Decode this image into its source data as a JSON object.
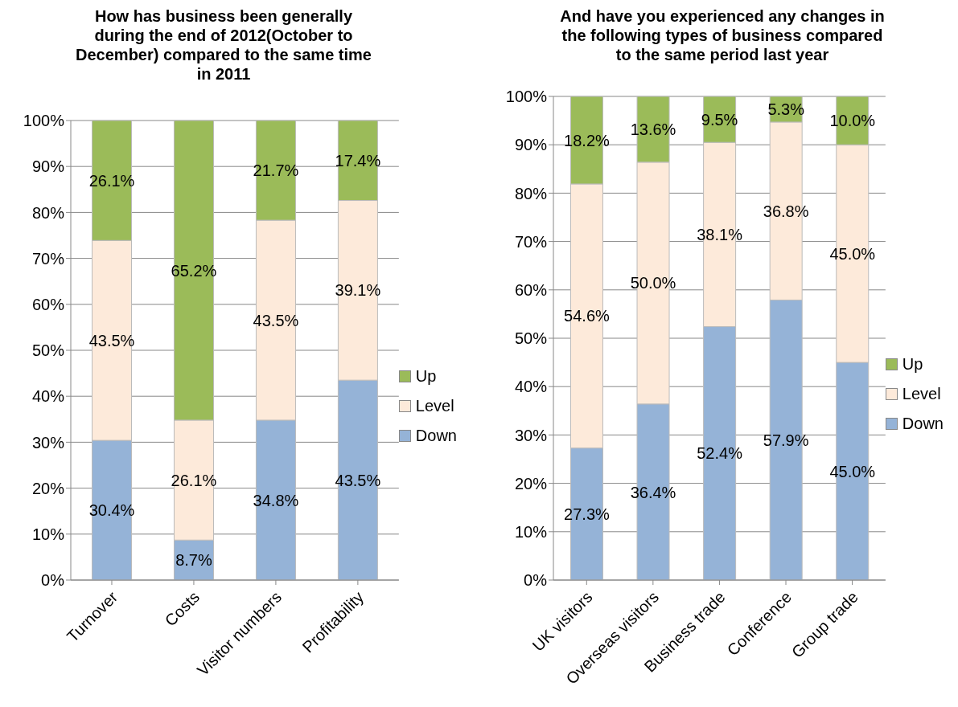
{
  "chart_data": [
    {
      "type": "bar",
      "stacked": true,
      "title": "How has business been generally during the end of 2012(October to December) compared to the same time in 2011",
      "categories": [
        "Turnover",
        "Costs",
        "Visitor numbers",
        "Profitability"
      ],
      "series": [
        {
          "name": "Down",
          "color": "#95b3d7",
          "values": [
            30.4,
            8.7,
            34.8,
            43.5
          ],
          "value_labels": [
            "30.4%",
            "8.7%",
            "34.8%",
            "43.5%"
          ]
        },
        {
          "name": "Level",
          "color": "#fdeada",
          "values": [
            43.5,
            26.1,
            43.5,
            39.1
          ],
          "value_labels": [
            "43.5%",
            "26.1%",
            "43.5%",
            "39.1%"
          ]
        },
        {
          "name": "Up",
          "color": "#9bbb59",
          "values": [
            26.1,
            65.2,
            21.7,
            17.4
          ],
          "value_labels": [
            "26.1%",
            "65.2%",
            "21.7%",
            "17.4%"
          ]
        }
      ],
      "ylim": [
        0,
        100
      ],
      "yticks": [
        {
          "value": 0,
          "label": "0%"
        },
        {
          "value": 10,
          "label": "10%"
        },
        {
          "value": 20,
          "label": "20%"
        },
        {
          "value": 30,
          "label": "30%"
        },
        {
          "value": 40,
          "label": "40%"
        },
        {
          "value": 50,
          "label": "50%"
        },
        {
          "value": 60,
          "label": "60%"
        },
        {
          "value": 70,
          "label": "70%"
        },
        {
          "value": 80,
          "label": "80%"
        },
        {
          "value": 90,
          "label": "90%"
        },
        {
          "value": 100,
          "label": "100%"
        }
      ],
      "grid": "y",
      "legend": "right"
    },
    {
      "type": "bar",
      "stacked": true,
      "title": "And have you experienced any changes in the following types of business compared to the same period last year",
      "categories": [
        "UK visitors",
        "Overseas visitors",
        "Business trade",
        "Conference",
        "Group trade"
      ],
      "series": [
        {
          "name": "Down",
          "color": "#95b3d7",
          "values": [
            27.3,
            36.4,
            52.4,
            57.9,
            45.0
          ],
          "value_labels": [
            "27.3%",
            "36.4%",
            "52.4%",
            "57.9%",
            "45.0%"
          ]
        },
        {
          "name": "Level",
          "color": "#fdeada",
          "values": [
            54.6,
            50.0,
            38.1,
            36.8,
            45.0
          ],
          "value_labels": [
            "54.6%",
            "50.0%",
            "38.1%",
            "36.8%",
            "45.0%"
          ]
        },
        {
          "name": "Up",
          "color": "#9bbb59",
          "values": [
            18.2,
            13.6,
            9.5,
            5.3,
            10.0
          ],
          "value_labels": [
            "18.2%",
            "13.6%",
            "9.5%",
            "5.3%",
            "10.0%"
          ]
        }
      ],
      "ylim": [
        0,
        100
      ],
      "yticks": [
        {
          "value": 0,
          "label": "0%"
        },
        {
          "value": 10,
          "label": "10%"
        },
        {
          "value": 20,
          "label": "20%"
        },
        {
          "value": 30,
          "label": "30%"
        },
        {
          "value": 40,
          "label": "40%"
        },
        {
          "value": 50,
          "label": "50%"
        },
        {
          "value": 60,
          "label": "60%"
        },
        {
          "value": 70,
          "label": "70%"
        },
        {
          "value": 80,
          "label": "80%"
        },
        {
          "value": 90,
          "label": "90%"
        },
        {
          "value": 100,
          "label": "100%"
        }
      ],
      "grid": "y",
      "legend": "right"
    }
  ]
}
